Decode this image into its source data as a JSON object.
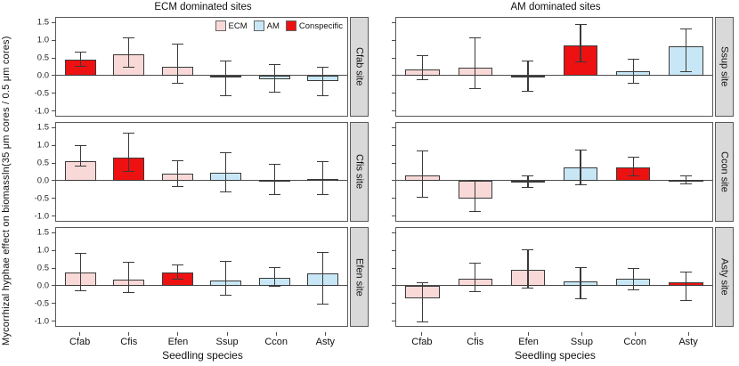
{
  "chart_data": {
    "type": "bar",
    "title_left": "ECM dominated sites",
    "title_right": "AM dominated sites",
    "col_titles": [
      "ECM dominated sites",
      "AM dominated sites"
    ],
    "xlabel": "Seedling species",
    "ylabel_line1": "Mycorrhizal hyphae effect on biomass",
    "ylabel_line2": "ln(35 μm cores / 0.5 μm cores)",
    "categories": [
      "Cfab",
      "Cfis",
      "Efen",
      "Ssup",
      "Ccon",
      "Asty"
    ],
    "ylim": [
      -1.15,
      1.65
    ],
    "yticks": [
      1.5,
      1.0,
      0.5,
      0.0,
      -0.5,
      -1.0
    ],
    "ytick_labels": [
      "1.5",
      "1.0",
      "0.5",
      "0.0",
      "-0.5",
      "-1.0"
    ],
    "grid": false,
    "legend_position": "top-right of first panel",
    "legend": [
      {
        "label": "ECM",
        "type": "ecm",
        "color": "#f9d9d8"
      },
      {
        "label": "AM",
        "type": "am",
        "color": "#c8e7f6"
      },
      {
        "label": "Conspecific",
        "type": "conspecific",
        "color": "#ee1111"
      }
    ],
    "colors": {
      "ecm": "#f9d9d8",
      "am": "#c8e7f6",
      "conspecific": "#ee1111",
      "bar_border": "#3a3a3a",
      "panel_border": "#595959",
      "strip_bg": "#d9d9d9"
    },
    "panels": [
      {
        "col": 0,
        "site": "Cfab site",
        "bars": [
          {
            "cat": "Cfab",
            "type": "conspecific",
            "value": 0.46,
            "lo": 0.26,
            "hi": 0.68
          },
          {
            "cat": "Cfis",
            "type": "ecm",
            "value": 0.6,
            "lo": 0.22,
            "hi": 1.1
          },
          {
            "cat": "Efen",
            "type": "ecm",
            "value": 0.25,
            "lo": -0.24,
            "hi": 0.92
          },
          {
            "cat": "Ssup",
            "type": "am",
            "value": -0.03,
            "lo": -0.6,
            "hi": 0.44
          },
          {
            "cat": "Ccon",
            "type": "am",
            "value": -0.1,
            "lo": -0.48,
            "hi": 0.32
          },
          {
            "cat": "Asty",
            "type": "am",
            "value": -0.17,
            "lo": -0.6,
            "hi": 0.24
          }
        ]
      },
      {
        "col": 0,
        "site": "Cfis site",
        "bars": [
          {
            "cat": "Cfab",
            "type": "ecm",
            "value": 0.56,
            "lo": 0.4,
            "hi": 1.02
          },
          {
            "cat": "Cfis",
            "type": "conspecific",
            "value": 0.65,
            "lo": 0.25,
            "hi": 1.38
          },
          {
            "cat": "Efen",
            "type": "ecm",
            "value": 0.21,
            "lo": -0.18,
            "hi": 0.57
          },
          {
            "cat": "Ssup",
            "type": "am",
            "value": 0.23,
            "lo": -0.34,
            "hi": 0.82
          },
          {
            "cat": "Ccon",
            "type": "am",
            "value": 0.02,
            "lo": -0.42,
            "hi": 0.48
          },
          {
            "cat": "Asty",
            "type": "am",
            "value": 0.05,
            "lo": -0.42,
            "hi": 0.56
          }
        ]
      },
      {
        "col": 0,
        "site": "Efen site",
        "bars": [
          {
            "cat": "Cfab",
            "type": "ecm",
            "value": 0.38,
            "lo": -0.15,
            "hi": 0.95
          },
          {
            "cat": "Cfis",
            "type": "ecm",
            "value": 0.17,
            "lo": -0.2,
            "hi": 0.68
          },
          {
            "cat": "Efen",
            "type": "conspecific",
            "value": 0.38,
            "lo": 0.18,
            "hi": 0.6
          },
          {
            "cat": "Ssup",
            "type": "am",
            "value": 0.14,
            "lo": -0.28,
            "hi": 0.72
          },
          {
            "cat": "Ccon",
            "type": "am",
            "value": 0.23,
            "lo": -0.03,
            "hi": 0.52
          },
          {
            "cat": "Asty",
            "type": "am",
            "value": 0.35,
            "lo": -0.53,
            "hi": 0.97
          }
        ]
      },
      {
        "col": 1,
        "site": "Ssup site",
        "bars": [
          {
            "cat": "Cfab",
            "type": "ecm",
            "value": 0.17,
            "lo": -0.12,
            "hi": 0.57
          },
          {
            "cat": "Cfis",
            "type": "ecm",
            "value": 0.22,
            "lo": -0.39,
            "hi": 1.08
          },
          {
            "cat": "Efen",
            "type": "ecm",
            "value": -0.06,
            "lo": -0.46,
            "hi": 0.42
          },
          {
            "cat": "Ssup",
            "type": "conspecific",
            "value": 0.87,
            "lo": 0.38,
            "hi": 1.46
          },
          {
            "cat": "Ccon",
            "type": "am",
            "value": 0.12,
            "lo": -0.24,
            "hi": 0.48
          },
          {
            "cat": "Asty",
            "type": "am",
            "value": 0.83,
            "lo": 0.1,
            "hi": 1.34
          }
        ]
      },
      {
        "col": 1,
        "site": "Ccon site",
        "bars": [
          {
            "cat": "Cfab",
            "type": "ecm",
            "value": 0.15,
            "lo": -0.48,
            "hi": 0.87
          },
          {
            "cat": "Cfis",
            "type": "ecm",
            "value": -0.51,
            "lo": -0.9,
            "hi": 0.02
          },
          {
            "cat": "Efen",
            "type": "ecm",
            "value": -0.02,
            "lo": -0.22,
            "hi": 0.15
          },
          {
            "cat": "Ssup",
            "type": "am",
            "value": 0.39,
            "lo": -0.14,
            "hi": 0.88
          },
          {
            "cat": "Ccon",
            "type": "conspecific",
            "value": 0.37,
            "lo": 0.11,
            "hi": 0.69
          },
          {
            "cat": "Asty",
            "type": "am",
            "value": 0.02,
            "lo": -0.1,
            "hi": 0.15
          }
        ]
      },
      {
        "col": 1,
        "site": "Asty site",
        "bars": [
          {
            "cat": "Cfab",
            "type": "ecm",
            "value": -0.37,
            "lo": -1.05,
            "hi": 0.11
          },
          {
            "cat": "Cfis",
            "type": "ecm",
            "value": 0.19,
            "lo": -0.19,
            "hi": 0.66
          },
          {
            "cat": "Efen",
            "type": "ecm",
            "value": 0.46,
            "lo": -0.07,
            "hi": 1.05
          },
          {
            "cat": "Ssup",
            "type": "am",
            "value": 0.13,
            "lo": -0.39,
            "hi": 0.52
          },
          {
            "cat": "Ccon",
            "type": "am",
            "value": 0.19,
            "lo": -0.13,
            "hi": 0.5
          },
          {
            "cat": "Asty",
            "type": "conspecific",
            "value": 0.09,
            "lo": -0.43,
            "hi": 0.41
          }
        ]
      }
    ]
  }
}
